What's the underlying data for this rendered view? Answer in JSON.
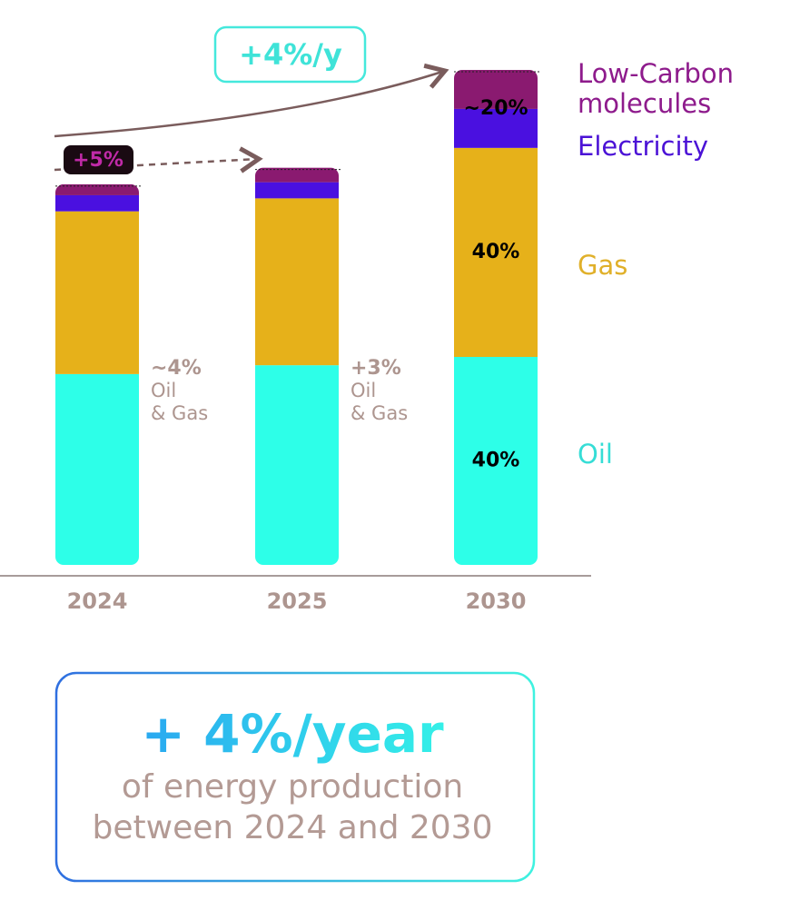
{
  "chart_data": {
    "type": "stacked_bar",
    "categories": [
      "2024",
      "2025",
      "2030"
    ],
    "series": [
      {
        "name": "Oil",
        "color": "#2dffe8",
        "values": [
          36.7,
          38.4,
          40
        ],
        "value_labels": [
          null,
          null,
          "40%"
        ]
      },
      {
        "name": "Gas",
        "color": "#e6b11a",
        "values": [
          31.3,
          32.1,
          40.2
        ],
        "value_labels": [
          null,
          null,
          "40%"
        ]
      },
      {
        "name": "Electricity",
        "color": "#4a10e0",
        "values": [
          3.1,
          3.1,
          7.5
        ]
      },
      {
        "name": "Low-Carbon molecules",
        "color": "#8a1a70",
        "values": [
          2.1,
          2.8,
          7.5
        ]
      }
    ],
    "legend_colors": [
      "#36ddd6",
      "#e0b02a",
      "#4b12d6",
      "#8e1b8c"
    ],
    "top_share_2030": "~20%",
    "growth_label": "+4%/y",
    "growth_2025_label": "+5%",
    "notes": [
      {
        "change": "~4%",
        "lines": [
          "Oil",
          "& Gas"
        ]
      },
      {
        "change": "+3%",
        "lines": [
          "Oil",
          "& Gas"
        ]
      }
    ],
    "summary": {
      "headline": "+ 4%/year",
      "lines": [
        "of energy production",
        "between 2024 and 2030"
      ]
    }
  }
}
